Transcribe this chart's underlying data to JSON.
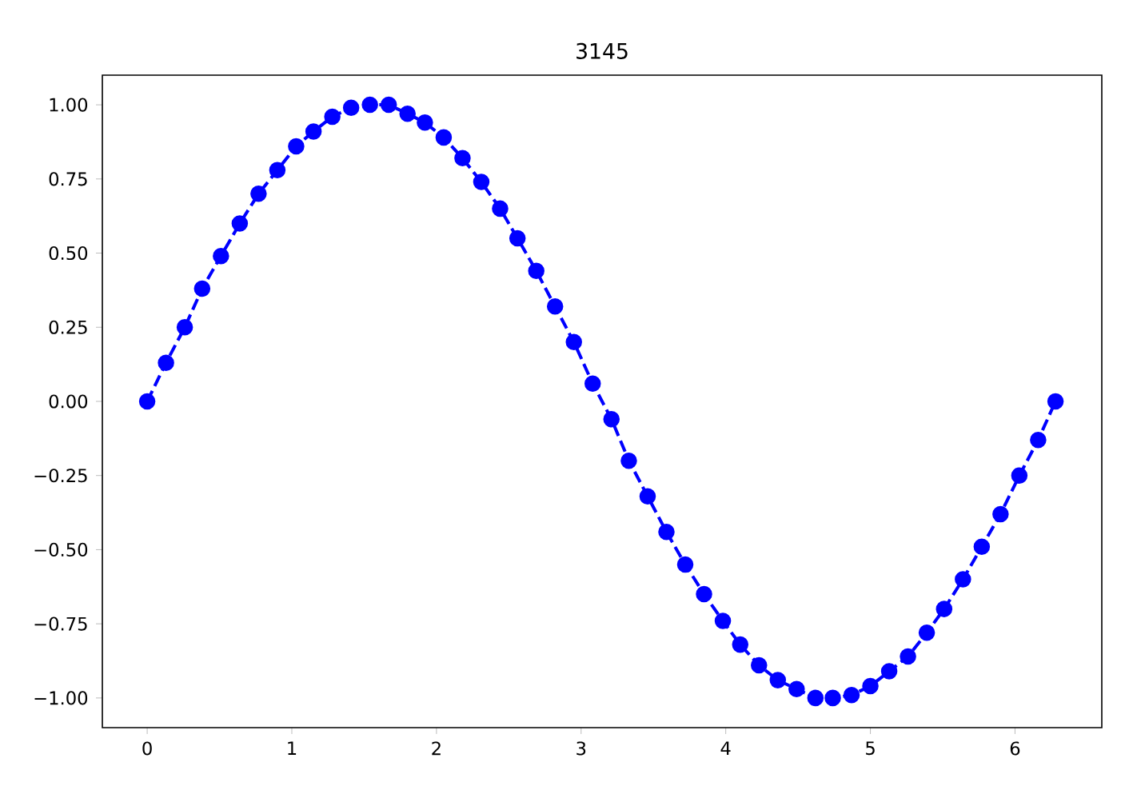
{
  "chart_data": {
    "type": "line",
    "title": "3145",
    "x": [
      0.0,
      0.13,
      0.26,
      0.38,
      0.51,
      0.64,
      0.77,
      0.9,
      1.03,
      1.15,
      1.28,
      1.41,
      1.54,
      1.67,
      1.8,
      1.92,
      2.05,
      2.18,
      2.31,
      2.44,
      2.56,
      2.69,
      2.82,
      2.95,
      3.08,
      3.21,
      3.33,
      3.46,
      3.59,
      3.72,
      3.85,
      3.98,
      4.1,
      4.23,
      4.36,
      4.49,
      4.62,
      4.74,
      4.87,
      5.0,
      5.13,
      5.26,
      5.39,
      5.51,
      5.64,
      5.77,
      5.9,
      6.03,
      6.16,
      6.28
    ],
    "values": [
      0.0,
      0.13,
      0.25,
      0.38,
      0.49,
      0.6,
      0.7,
      0.78,
      0.86,
      0.91,
      0.96,
      0.99,
      1.0,
      1.0,
      0.97,
      0.94,
      0.89,
      0.82,
      0.74,
      0.65,
      0.55,
      0.44,
      0.32,
      0.2,
      0.06,
      -0.06,
      -0.2,
      -0.32,
      -0.44,
      -0.55,
      -0.65,
      -0.74,
      -0.82,
      -0.89,
      -0.94,
      -0.97,
      -1.0,
      -1.0,
      -0.99,
      -0.96,
      -0.91,
      -0.86,
      -0.78,
      -0.7,
      -0.6,
      -0.49,
      -0.38,
      -0.25,
      -0.13,
      0.0
    ],
    "color": "#0000ff",
    "marker": "circle",
    "line_style": "dashed",
    "grid": false,
    "xlim": [
      -0.31,
      6.6
    ],
    "ylim": [
      -1.1,
      1.1
    ],
    "xticks": [
      0,
      1,
      2,
      3,
      4,
      5,
      6
    ],
    "yticks": [
      {
        "value": -1.0,
        "label": "−1.00"
      },
      {
        "value": -0.75,
        "label": "−0.75"
      },
      {
        "value": -0.5,
        "label": "−0.50"
      },
      {
        "value": -0.25,
        "label": "−0.25"
      },
      {
        "value": 0.0,
        "label": "0.00"
      },
      {
        "value": 0.25,
        "label": "0.25"
      },
      {
        "value": 0.5,
        "label": "0.50"
      },
      {
        "value": 0.75,
        "label": "0.75"
      },
      {
        "value": 1.0,
        "label": "1.00"
      }
    ]
  }
}
